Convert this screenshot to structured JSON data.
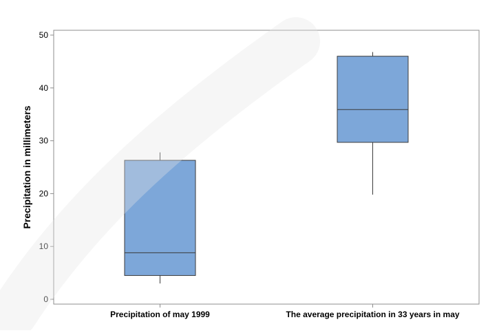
{
  "chart_data": {
    "type": "boxplot",
    "title": "",
    "xlabel": "",
    "ylabel": "Precipitation in millimeters",
    "ylim": [
      0,
      50
    ],
    "yticks": [
      0,
      10,
      20,
      30,
      40,
      50
    ],
    "grid": false,
    "categories": [
      "Precipitation of may 1999",
      "The average precipitation in 33 years in may"
    ],
    "boxes": [
      {
        "category": "Precipitation of may 1999",
        "min": 3,
        "q1": 4.5,
        "median": 8.8,
        "q3": 26.3,
        "max": 27.8
      },
      {
        "category": "The average precipitation in 33 years in may",
        "min": 19.8,
        "q1": 29.7,
        "median": 35.9,
        "q3": 46.0,
        "max": 46.8
      }
    ],
    "colors": {
      "box_fill": "#7da7d9",
      "box_stroke": "#3a3a3a",
      "frame": "#8c8c8c",
      "background": "#ffffff",
      "outer": "#f0f0f0"
    }
  }
}
